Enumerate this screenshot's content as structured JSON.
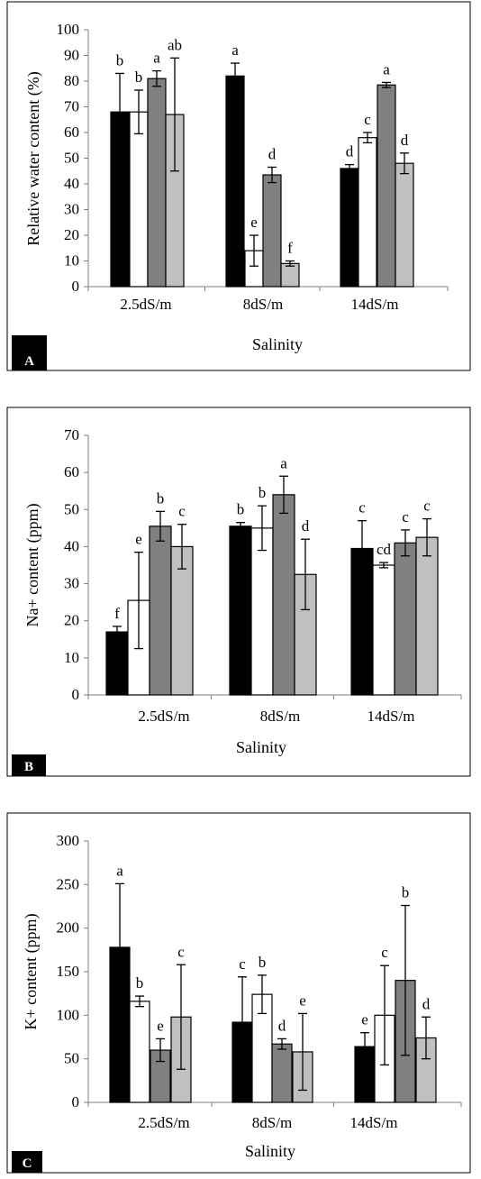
{
  "chart_data": [
    {
      "type": "bar",
      "panel_label": "A",
      "ylabel": "Relative water content (%)",
      "xlabel": "Salinity",
      "categories": [
        "2.5dS/m",
        "8dS/m",
        "14dS/m"
      ],
      "ylim": [
        0,
        100
      ],
      "yticks": [
        "0",
        "10",
        "20",
        "30",
        "40",
        "50",
        "60",
        "70",
        "80",
        "90",
        "100"
      ],
      "grid": false,
      "series": [
        {
          "color": "#000000",
          "values": [
            68,
            82,
            46
          ],
          "errors": [
            15,
            5,
            1.5
          ],
          "letters": [
            "b",
            "a",
            "d"
          ]
        },
        {
          "color": "#ffffff",
          "values": [
            68,
            14,
            58
          ],
          "errors": [
            8.5,
            6,
            2
          ],
          "letters": [
            "b",
            "e",
            "c"
          ]
        },
        {
          "color": "#808080",
          "values": [
            81,
            43.5,
            78.5
          ],
          "errors": [
            3,
            3,
            1
          ],
          "letters": [
            "a",
            "d",
            "a"
          ]
        },
        {
          "color": "#c0c0c0",
          "values": [
            67,
            9,
            48
          ],
          "errors": [
            22,
            1,
            4
          ],
          "letters": [
            "ab",
            "f",
            "d"
          ]
        }
      ]
    },
    {
      "type": "bar",
      "panel_label": "B",
      "ylabel": "Na+ content (ppm)",
      "xlabel": "Salinity",
      "categories": [
        "2.5dS/m",
        "8dS/m",
        "14dS/m"
      ],
      "ylim": [
        0,
        70
      ],
      "yticks": [
        "0",
        "10",
        "20",
        "30",
        "40",
        "50",
        "60",
        "70"
      ],
      "grid": false,
      "series": [
        {
          "color": "#000000",
          "values": [
            17,
            45.5,
            39.5
          ],
          "errors": [
            1.5,
            1,
            7.5
          ],
          "letters": [
            "f",
            "b",
            "c"
          ]
        },
        {
          "color": "#ffffff",
          "values": [
            25.5,
            45,
            35
          ],
          "errors": [
            13,
            6,
            0.7
          ],
          "letters": [
            "e",
            "b",
            "cd"
          ]
        },
        {
          "color": "#808080",
          "values": [
            45.5,
            54,
            41
          ],
          "errors": [
            4,
            5,
            3.5
          ],
          "letters": [
            "b",
            "a",
            "c"
          ]
        },
        {
          "color": "#c0c0c0",
          "values": [
            40,
            32.5,
            42.5
          ],
          "errors": [
            6,
            9.5,
            5
          ],
          "letters": [
            "c",
            "d",
            "c"
          ]
        }
      ]
    },
    {
      "type": "bar",
      "panel_label": "C",
      "ylabel": "K+ content (ppm)",
      "xlabel": "Salinity",
      "categories": [
        "2.5dS/m",
        "8dS/m",
        "14dS/m"
      ],
      "ylim": [
        0,
        300
      ],
      "yticks": [
        "0",
        "50",
        "100",
        "150",
        "200",
        "250",
        "300"
      ],
      "grid": false,
      "series": [
        {
          "color": "#000000",
          "values": [
            178,
            92,
            64
          ],
          "errors": [
            73,
            52,
            16
          ],
          "letters": [
            "a",
            "c",
            "e"
          ]
        },
        {
          "color": "#ffffff",
          "values": [
            116,
            124,
            100
          ],
          "errors": [
            6,
            22,
            57
          ],
          "letters": [
            "b",
            "b",
            "c"
          ]
        },
        {
          "color": "#808080",
          "values": [
            60,
            67,
            140
          ],
          "errors": [
            13,
            6,
            86
          ],
          "letters": [
            "e",
            "d",
            "b"
          ]
        },
        {
          "color": "#c0c0c0",
          "values": [
            98,
            58,
            74
          ],
          "errors": [
            60,
            44,
            24
          ],
          "letters": [
            "c",
            "e",
            "d"
          ]
        }
      ]
    }
  ]
}
